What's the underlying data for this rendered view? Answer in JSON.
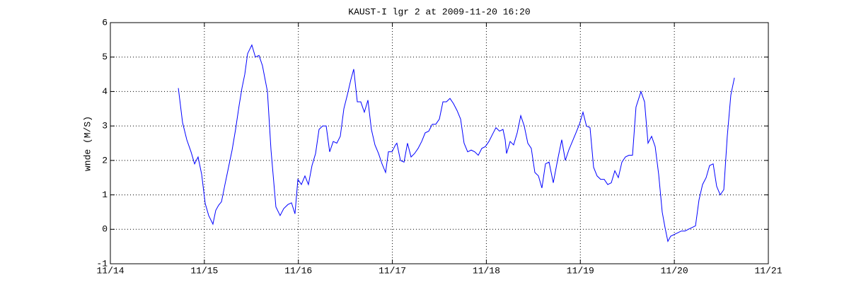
{
  "chart_data": {
    "type": "line",
    "title": "KAUST-I lgr 2 at 2009-11-20 16:20",
    "ylabel": "wnde (M/S)",
    "color": "#0000ff",
    "grid": true,
    "xlim": [
      14,
      21
    ],
    "xticks": [
      {
        "value": 14,
        "label": "11/14"
      },
      {
        "value": 15,
        "label": "11/15"
      },
      {
        "value": 16,
        "label": "11/16"
      },
      {
        "value": 17,
        "label": "11/17"
      },
      {
        "value": 18,
        "label": "11/18"
      },
      {
        "value": 19,
        "label": "11/19"
      },
      {
        "value": 20,
        "label": "11/20"
      },
      {
        "value": 21,
        "label": "11/21"
      }
    ],
    "ylim": [
      -1,
      6
    ],
    "yticks": [
      -1,
      0,
      1,
      2,
      3,
      4,
      5,
      6
    ],
    "x": [
      14.723,
      14.768,
      14.813,
      14.858,
      14.896,
      14.933,
      14.971,
      15.009,
      15.046,
      15.091,
      15.121,
      15.152,
      15.182,
      15.219,
      15.257,
      15.295,
      15.332,
      15.37,
      15.4,
      15.43,
      15.46,
      15.505,
      15.543,
      15.581,
      15.618,
      15.671,
      15.709,
      15.761,
      15.806,
      15.844,
      15.889,
      15.927,
      15.964,
      15.995,
      16.032,
      16.07,
      16.107,
      16.145,
      16.183,
      16.22,
      16.258,
      16.296,
      16.333,
      16.371,
      16.409,
      16.446,
      16.484,
      16.521,
      16.559,
      16.589,
      16.627,
      16.664,
      16.702,
      16.74,
      16.777,
      16.815,
      16.853,
      16.89,
      16.928,
      16.958,
      16.996,
      17.033,
      17.048,
      17.086,
      17.124,
      17.161,
      17.199,
      17.236,
      17.274,
      17.312,
      17.349,
      17.387,
      17.425,
      17.462,
      17.5,
      17.538,
      17.575,
      17.613,
      17.65,
      17.688,
      17.726,
      17.763,
      17.801,
      17.839,
      17.876,
      17.914,
      17.952,
      17.989,
      18.027,
      18.064,
      18.102,
      18.14,
      18.177,
      18.2,
      18.215,
      18.253,
      18.29,
      18.328,
      18.366,
      18.403,
      18.441,
      18.478,
      18.516,
      18.554,
      18.591,
      18.629,
      18.667,
      18.712,
      18.757,
      18.802,
      18.84,
      18.877,
      18.915,
      18.953,
      18.99,
      19.028,
      19.065,
      19.103,
      19.141,
      19.178,
      19.216,
      19.254,
      19.291,
      19.329,
      19.367,
      19.404,
      19.442,
      19.479,
      19.517,
      19.555,
      19.592,
      19.645,
      19.683,
      19.72,
      19.758,
      19.796,
      19.833,
      19.871,
      19.901,
      19.931,
      19.961,
      19.999,
      20.036,
      20.074,
      20.112,
      20.149,
      20.187,
      20.225,
      20.262,
      20.3,
      20.338,
      20.375,
      20.413,
      20.45,
      20.488,
      20.526,
      20.563,
      20.601,
      20.639
    ],
    "values": [
      4.1,
      3.1,
      2.6,
      2.25,
      1.9,
      2.1,
      1.6,
      0.75,
      0.4,
      0.15,
      0.55,
      0.7,
      0.8,
      1.3,
      1.8,
      2.3,
      2.9,
      3.6,
      4.1,
      4.5,
      5.1,
      5.35,
      5.0,
      5.05,
      4.75,
      4.0,
      2.3,
      0.65,
      0.4,
      0.6,
      0.72,
      0.77,
      0.45,
      1.45,
      1.3,
      1.55,
      1.3,
      1.85,
      2.2,
      2.9,
      3.0,
      3.0,
      2.25,
      2.55,
      2.5,
      2.7,
      3.5,
      3.9,
      4.35,
      4.65,
      3.7,
      3.7,
      3.4,
      3.75,
      2.9,
      2.45,
      2.2,
      1.9,
      1.65,
      2.25,
      2.25,
      2.45,
      2.5,
      2.0,
      1.95,
      2.5,
      2.1,
      2.2,
      2.35,
      2.55,
      2.8,
      2.85,
      3.05,
      3.05,
      3.2,
      3.7,
      3.7,
      3.8,
      3.65,
      3.45,
      3.2,
      2.5,
      2.25,
      2.3,
      2.25,
      2.15,
      2.35,
      2.4,
      2.55,
      2.75,
      2.95,
      2.85,
      2.9,
      2.6,
      2.2,
      2.55,
      2.45,
      2.8,
      3.3,
      3.0,
      2.5,
      2.35,
      1.65,
      1.55,
      1.2,
      1.9,
      1.95,
      1.35,
      2.0,
      2.6,
      2.0,
      2.3,
      2.55,
      2.8,
      3.05,
      3.4,
      3.0,
      2.95,
      1.8,
      1.55,
      1.45,
      1.45,
      1.3,
      1.35,
      1.7,
      1.5,
      1.95,
      2.1,
      2.15,
      2.15,
      3.55,
      4.0,
      3.7,
      2.5,
      2.7,
      2.4,
      1.6,
      0.5,
      0.05,
      -0.35,
      -0.2,
      -0.15,
      -0.1,
      -0.05,
      -0.05,
      0.0,
      0.05,
      0.1,
      0.85,
      1.3,
      1.5,
      1.85,
      1.9,
      1.25,
      1.0,
      1.15,
      2.7,
      3.9,
      4.4
    ]
  }
}
